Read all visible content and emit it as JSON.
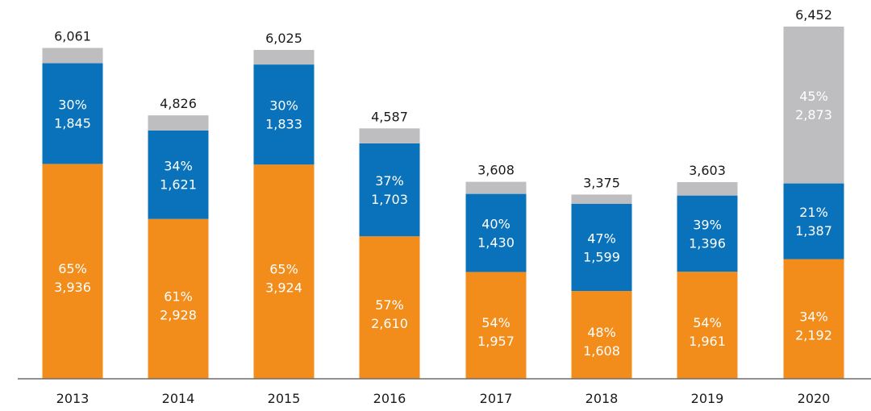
{
  "chart_data": {
    "type": "bar",
    "stacked": true,
    "categories": [
      "2013",
      "2014",
      "2015",
      "2016",
      "2017",
      "2018",
      "2019",
      "2020"
    ],
    "totals": [
      6061,
      4826,
      6025,
      4587,
      3608,
      3375,
      3603,
      6452
    ],
    "total_labels": [
      "6,061",
      "4,826",
      "6,025",
      "4,587",
      "3,608",
      "3,375",
      "3,603",
      "6,452"
    ],
    "series": [
      {
        "color": "#F28C1A",
        "values": [
          3936,
          2928,
          3924,
          2610,
          1957,
          1608,
          1961,
          2192
        ],
        "value_labels": [
          "3,936",
          "2,928",
          "3,924",
          "2,610",
          "1,957",
          "1,608",
          "1,961",
          "2,192"
        ],
        "pct_labels": [
          "65%",
          "61%",
          "65%",
          "57%",
          "54%",
          "48%",
          "54%",
          "34%"
        ]
      },
      {
        "color": "#0A72BA",
        "values": [
          1845,
          1621,
          1833,
          1703,
          1430,
          1599,
          1396,
          1387
        ],
        "value_labels": [
          "1,845",
          "1,621",
          "1,833",
          "1,703",
          "1,430",
          "1,599",
          "1,396",
          "1,387"
        ],
        "pct_labels": [
          "30%",
          "34%",
          "30%",
          "37%",
          "40%",
          "47%",
          "39%",
          "21%"
        ]
      },
      {
        "color": "#BEBEC0",
        "values": [
          280,
          277,
          268,
          274,
          221,
          168,
          246,
          2873
        ],
        "value_labels": [
          "",
          "",
          "",
          "",
          "",
          "",
          "",
          "2,873"
        ],
        "pct_labels": [
          "",
          "",
          "",
          "",
          "",
          "",
          "",
          "45%"
        ]
      }
    ],
    "ylim": [
      0,
      6452
    ],
    "grid": false,
    "legend": "none"
  }
}
